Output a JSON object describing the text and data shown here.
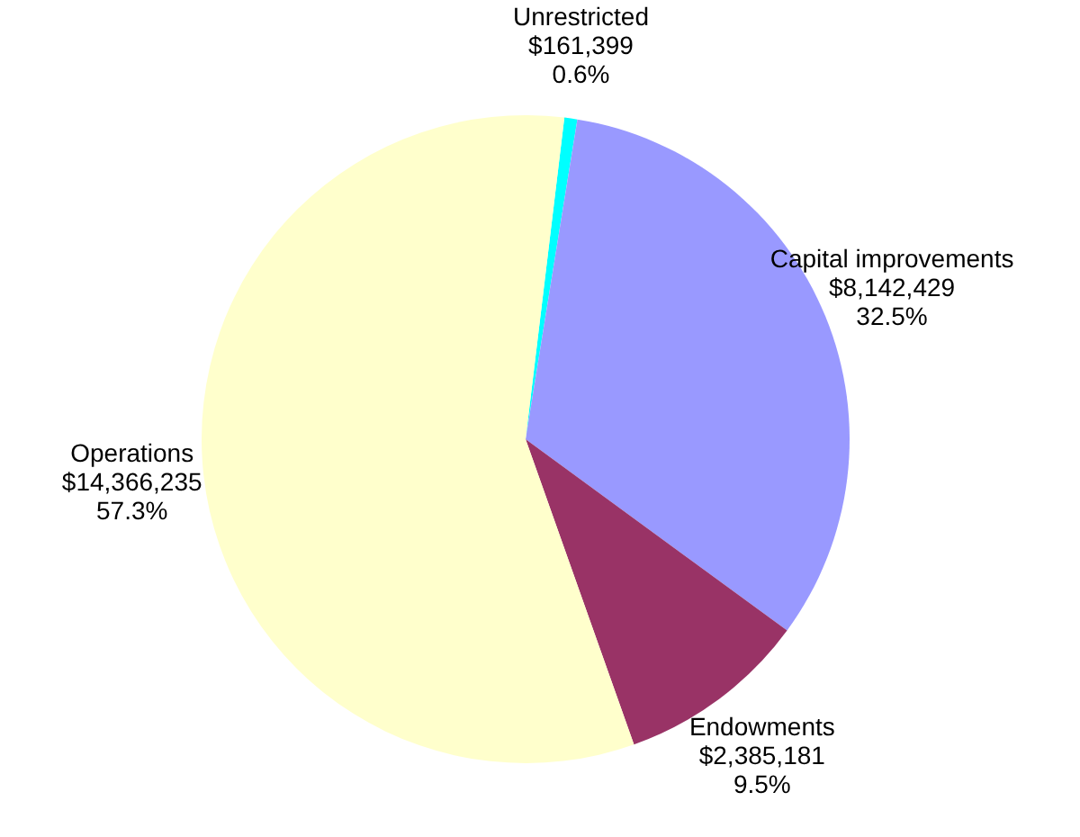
{
  "chart_data": {
    "type": "pie",
    "categories": [
      "Unrestricted",
      "Capital improvements",
      "Endowments",
      "Operations"
    ],
    "values": [
      161399,
      8142429,
      2385181,
      14366235
    ],
    "colors": [
      "#00ffff",
      "#9999ff",
      "#993366",
      "#ffffcc"
    ],
    "value_labels": [
      "$161,399\n0.6%",
      "$8,142,429\n32.5%",
      "$2,385,181\n9.5%",
      "$14,366,235\n57.3%"
    ]
  }
}
